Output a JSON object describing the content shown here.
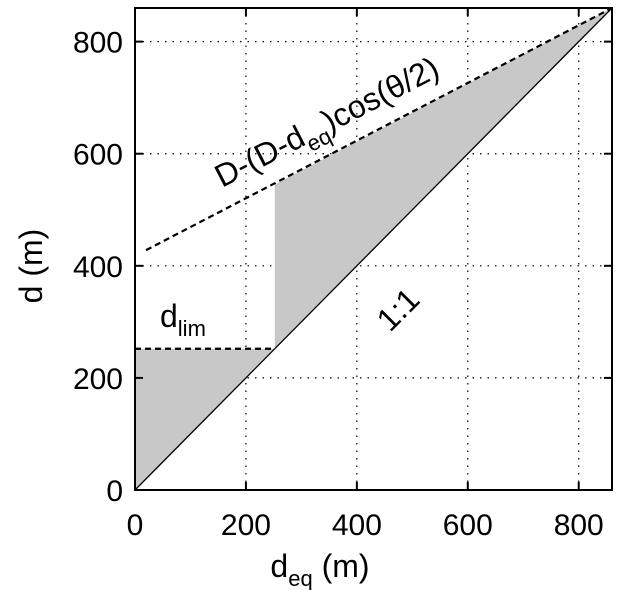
{
  "chart_data": {
    "type": "area",
    "xlabel": {
      "main": "d",
      "sub": "eq",
      "unit": " (m)"
    },
    "ylabel": "d (m)",
    "xlim": [
      0,
      860
    ],
    "ylim": [
      0,
      860
    ],
    "xticks": [
      0,
      200,
      400,
      600,
      800
    ],
    "yticks": [
      0,
      200,
      400,
      600,
      800
    ],
    "grid": "dotted",
    "colors": {
      "shade": "#c8c8c8",
      "line": "#000000"
    },
    "series": [
      {
        "label_text": "1:1",
        "style": "solid",
        "x": [
          0,
          860
        ],
        "y": [
          0,
          860
        ]
      },
      {
        "label_parts": [
          "D-(D-d",
          "eq",
          ")cos(θ/2)"
        ],
        "style": "dashed",
        "x": [
          20,
          860
        ],
        "y": [
          428,
          860
        ]
      },
      {
        "label_parts": [
          "d",
          "lim"
        ],
        "style": "dashed",
        "x": [
          0,
          252
        ],
        "y": [
          252,
          252
        ]
      }
    ],
    "shaded_regions": [
      {
        "x": [
          0,
          252,
          0
        ],
        "y": [
          0,
          252,
          252
        ]
      },
      {
        "x": [
          252,
          860,
          252
        ],
        "y": [
          252,
          860,
          545
        ]
      }
    ]
  }
}
